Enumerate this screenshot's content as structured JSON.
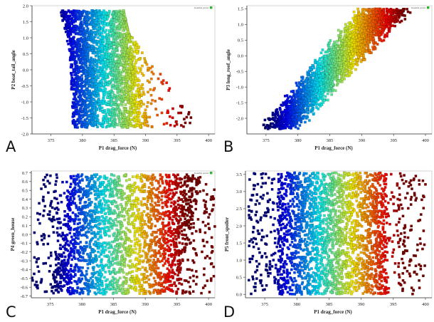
{
  "panels": [
    {
      "letter": "A",
      "chart_data": {
        "type": "scatter",
        "xlabel": "P1 drag_force (N)",
        "ylabel": "P2 boat_tail_angle",
        "xlim": [
          372,
          401
        ],
        "ylim": [
          -2.0,
          2.0
        ],
        "xticks": [
          375,
          380,
          385,
          390,
          395,
          400
        ],
        "yticks": [
          -2.0,
          -1.5,
          -1.0,
          -0.5,
          0.0,
          0.5,
          1.0,
          1.5,
          2.0
        ],
        "ytick_decimals": 1,
        "legend": "Feasible points",
        "legend_position": "top-right",
        "grid": false,
        "trend": {
          "x_low": [
            378.5,
            390.5
          ],
          "x_high": [
            376.5,
            386.5
          ],
          "y_low": -1.8,
          "y_high": 1.85,
          "bend_y": 0.5,
          "bend_x_low": 378.0,
          "bend_x_high": 388.0,
          "extra_tail_low": 6.5
        },
        "colorscale": "drag_force (jet)",
        "n_points": 2600,
        "seed": 11
      }
    },
    {
      "letter": "B",
      "chart_data": {
        "type": "scatter",
        "xlabel": "P1 drag_force (N)",
        "ylabel": "P3 long_roof_angle",
        "xlim": [
          372,
          401
        ],
        "ylim": [
          -2.5,
          1.6
        ],
        "xticks": [
          375,
          380,
          385,
          390,
          395,
          400
        ],
        "yticks": [
          -2.0,
          -1.5,
          -1.0,
          -0.5,
          0.0,
          0.5,
          1.0,
          1.5
        ],
        "ytick_decimals": 1,
        "legend": "Feasible points",
        "legend_position": "top-right",
        "grid": false,
        "trend": {
          "diagonal": true,
          "y_low": -2.35,
          "y_high": 1.5,
          "x_at_low": [
            373.5,
            380.5
          ],
          "x_at_high": [
            389.0,
            398.5
          ]
        },
        "colorscale": "drag_force (jet)",
        "n_points": 2600,
        "seed": 23
      }
    },
    {
      "letter": "C",
      "chart_data": {
        "type": "scatter",
        "xlabel": "P1 drag_force (N)",
        "ylabel": "P4 green_house",
        "xlim": [
          372,
          401
        ],
        "ylim": [
          -0.72,
          0.72
        ],
        "xticks": [
          375,
          380,
          385,
          390,
          395,
          400
        ],
        "yticks": [
          -0.7,
          -0.6,
          -0.5,
          -0.4,
          -0.3,
          -0.2,
          -0.1,
          0.0,
          0.1,
          0.2,
          0.3,
          0.4,
          0.5,
          0.6,
          0.7
        ],
        "ytick_decimals": 1,
        "legend": "Feasible points",
        "legend_position": "top-right",
        "grid": false,
        "trend": {
          "y_low": -0.68,
          "y_high": 0.68,
          "x_at_low": [
            375.0,
            395.0
          ],
          "x_at_high": [
            378.5,
            399.0
          ]
        },
        "colorscale": "drag_force (jet)",
        "n_points": 2600,
        "seed": 37
      }
    },
    {
      "letter": "D",
      "chart_data": {
        "type": "scatter",
        "xlabel": "P1 drag_force (N)",
        "ylabel": "P5 front_spoiler",
        "xlim": [
          372,
          401
        ],
        "ylim": [
          -0.1,
          3.6
        ],
        "xticks": [
          375,
          380,
          385,
          390,
          395,
          400
        ],
        "yticks": [
          0.0,
          0.5,
          1.0,
          1.5,
          2.0,
          2.5,
          3.0,
          3.5
        ],
        "ytick_decimals": 1,
        "legend": "",
        "legend_position": "",
        "grid": false,
        "trend": {
          "y_low": 0.0,
          "y_high": 3.55,
          "x_at_low": [
            377.0,
            394.0
          ],
          "x_at_high": [
            377.0,
            394.0
          ]
        },
        "colorscale": "drag_force (jet)",
        "n_points": 2600,
        "seed": 51
      }
    }
  ]
}
